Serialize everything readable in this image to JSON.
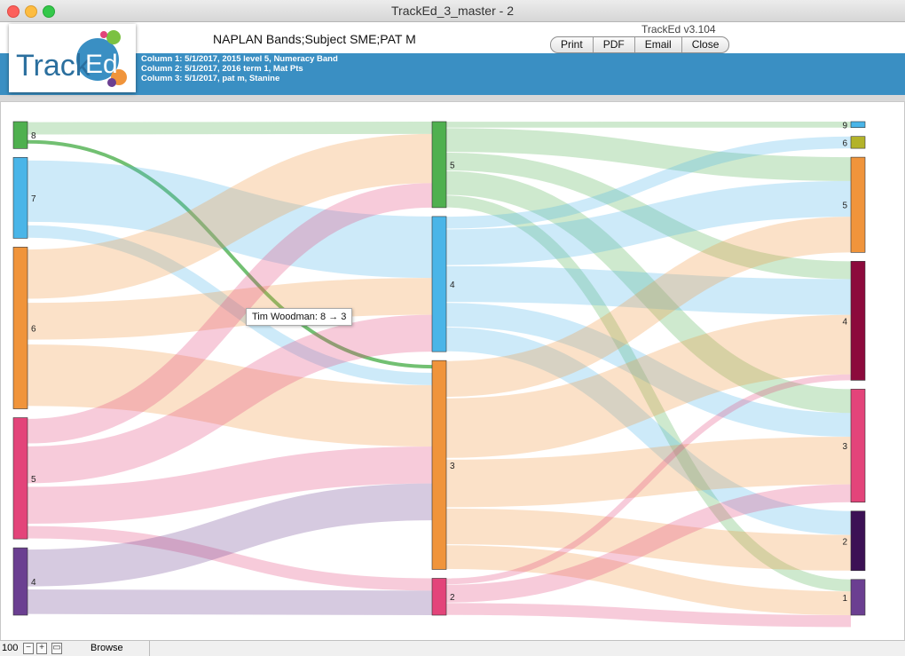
{
  "window": {
    "title": "TrackEd_3_master - 2"
  },
  "header": {
    "logo_text": "TrackEd",
    "report_title": "NAPLAN Bands;Subject SME;PAT M",
    "version": "TrackEd v3.104",
    "buttons": [
      "Print",
      "PDF",
      "Email",
      "Close"
    ],
    "columns": [
      "Column 1:  5/1/2017, 2015 level 5, Numeracy Band",
      "Column 2:  5/1/2017, 2016 term 1, Mat Pts",
      "Column 3:  5/1/2017, pat m, Stanine"
    ]
  },
  "tooltip": "Tim Woodman: 8 → 3",
  "status": {
    "zoom": "100",
    "mode": "Browse"
  },
  "colors": {
    "band": "#3a8fc3",
    "green": "#4fb04f",
    "blue": "#4ab5e8",
    "orange": "#f0943b",
    "pink": "#e3447a",
    "purple": "#6b3f91",
    "darkred": "#8c0a3c",
    "olive": "#b3b32a",
    "darkpurple": "#3c1155"
  },
  "chart_data": {
    "type": "sankey",
    "columns": [
      {
        "name": "Column 1",
        "nodes": [
          {
            "label": "8",
            "value": 2,
            "color": "#4fb04f"
          },
          {
            "label": "7",
            "value": 6,
            "color": "#4ab5e8"
          },
          {
            "label": "6",
            "value": 12,
            "color": "#f0943b"
          },
          {
            "label": "5",
            "value": 9,
            "color": "#e3447a"
          },
          {
            "label": "4",
            "value": 5,
            "color": "#6b3f91"
          }
        ]
      },
      {
        "name": "Column 2",
        "nodes": [
          {
            "label": "5",
            "value": 7,
            "color": "#4fb04f"
          },
          {
            "label": "4",
            "value": 11,
            "color": "#4ab5e8"
          },
          {
            "label": "3",
            "value": 17,
            "color": "#f0943b"
          },
          {
            "label": "2",
            "value": 3,
            "color": "#e3447a"
          }
        ]
      },
      {
        "name": "Column 3",
        "nodes": [
          {
            "label": "9",
            "value": 0.5,
            "color": "#4ab5e8"
          },
          {
            "label": "6",
            "value": 1,
            "color": "#b3b32a"
          },
          {
            "label": "5",
            "value": 8,
            "color": "#f0943b"
          },
          {
            "label": "4",
            "value": 10,
            "color": "#8c0a3c"
          },
          {
            "label": "3",
            "value": 9.5,
            "color": "#e3447a"
          },
          {
            "label": "2",
            "value": 5,
            "color": "#3c1155"
          },
          {
            "label": "1",
            "value": 3,
            "color": "#6b3f91"
          }
        ]
      }
    ],
    "links": [
      {
        "from": [
          0,
          0
        ],
        "to": [
          1,
          0
        ],
        "value": 1
      },
      {
        "from": [
          0,
          0
        ],
        "to": [
          1,
          2
        ],
        "value": 1,
        "highlight": true
      },
      {
        "from": [
          0,
          1
        ],
        "to": [
          1,
          1
        ],
        "value": 5
      },
      {
        "from": [
          0,
          1
        ],
        "to": [
          1,
          2
        ],
        "value": 1
      },
      {
        "from": [
          0,
          2
        ],
        "to": [
          1,
          0
        ],
        "value": 4
      },
      {
        "from": [
          0,
          2
        ],
        "to": [
          1,
          1
        ],
        "value": 3
      },
      {
        "from": [
          0,
          2
        ],
        "to": [
          1,
          2
        ],
        "value": 5
      },
      {
        "from": [
          0,
          3
        ],
        "to": [
          1,
          0
        ],
        "value": 2
      },
      {
        "from": [
          0,
          3
        ],
        "to": [
          1,
          1
        ],
        "value": 3
      },
      {
        "from": [
          0,
          3
        ],
        "to": [
          1,
          2
        ],
        "value": 3
      },
      {
        "from": [
          0,
          3
        ],
        "to": [
          1,
          3
        ],
        "value": 1
      },
      {
        "from": [
          0,
          4
        ],
        "to": [
          1,
          2
        ],
        "value": 3
      },
      {
        "from": [
          0,
          4
        ],
        "to": [
          1,
          3
        ],
        "value": 2
      },
      {
        "from": [
          1,
          0
        ],
        "to": [
          2,
          0
        ],
        "value": 0.5
      },
      {
        "from": [
          1,
          0
        ],
        "to": [
          2,
          2
        ],
        "value": 2
      },
      {
        "from": [
          1,
          0
        ],
        "to": [
          2,
          3
        ],
        "value": 1.5
      },
      {
        "from": [
          1,
          0
        ],
        "to": [
          2,
          4
        ],
        "value": 2
      },
      {
        "from": [
          1,
          0
        ],
        "to": [
          2,
          6
        ],
        "value": 1
      },
      {
        "from": [
          1,
          1
        ],
        "to": [
          2,
          1
        ],
        "value": 1
      },
      {
        "from": [
          1,
          1
        ],
        "to": [
          2,
          2
        ],
        "value": 3
      },
      {
        "from": [
          1,
          1
        ],
        "to": [
          2,
          3
        ],
        "value": 3
      },
      {
        "from": [
          1,
          1
        ],
        "to": [
          2,
          4
        ],
        "value": 2
      },
      {
        "from": [
          1,
          1
        ],
        "to": [
          2,
          5
        ],
        "value": 2
      },
      {
        "from": [
          1,
          2
        ],
        "to": [
          2,
          2
        ],
        "value": 3
      },
      {
        "from": [
          1,
          2
        ],
        "to": [
          2,
          3
        ],
        "value": 5
      },
      {
        "from": [
          1,
          2
        ],
        "to": [
          2,
          4
        ],
        "value": 4
      },
      {
        "from": [
          1,
          2
        ],
        "to": [
          2,
          5
        ],
        "value": 3
      },
      {
        "from": [
          1,
          2
        ],
        "to": [
          2,
          6
        ],
        "value": 2
      },
      {
        "from": [
          1,
          3
        ],
        "to": [
          2,
          3
        ],
        "value": 0.5
      },
      {
        "from": [
          1,
          3
        ],
        "to": [
          2,
          4
        ],
        "value": 1.5
      },
      {
        "from": [
          1,
          3
        ],
        "to": [
          2,
          6
        ],
        "value": 1
      }
    ]
  }
}
